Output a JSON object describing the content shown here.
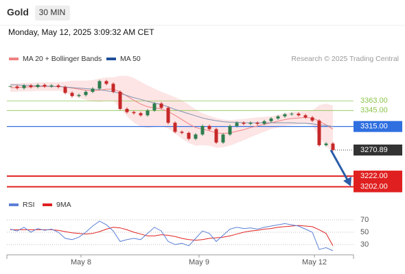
{
  "header": {
    "title": "Gold",
    "interval": "30 MIN",
    "datetime": "Monday, May 12, 2025 3:09:32 AM CET"
  },
  "chart_data": [
    {
      "type": "candlestick",
      "credit": "Research © 2025 Trading Central",
      "xlim": [
        -0.5,
        50
      ],
      "ylim": [
        3190,
        3425
      ],
      "up_color": "#2e7d4f",
      "down_color": "#c62828",
      "closes": [
        3390,
        3387,
        3392,
        3389,
        3393,
        3390,
        3392,
        3389,
        3378,
        3372,
        3374,
        3380,
        3386,
        3400,
        3395,
        3380,
        3348,
        3342,
        3340,
        3336,
        3345,
        3358,
        3350,
        3322,
        3305,
        3303,
        3292,
        3300,
        3316,
        3310,
        3285,
        3300,
        3316,
        3322,
        3320,
        3322,
        3320,
        3325,
        3330,
        3334,
        3338,
        3339,
        3336,
        3332,
        3326,
        3280,
        3283,
        3271
      ],
      "series": [
        {
          "name": "MA 20 + Bollinger Bands",
          "color": "#f08080",
          "band_color": "#fde0e0",
          "values": [
            3388,
            3388,
            3389,
            3389,
            3390,
            3390,
            3390,
            3390,
            3389,
            3387,
            3385,
            3383,
            3382,
            3383,
            3385,
            3385,
            3380,
            3372,
            3364,
            3357,
            3352,
            3350,
            3348,
            3343,
            3336,
            3328,
            3320,
            3313,
            3310,
            3307,
            3303,
            3302,
            3303,
            3306,
            3309,
            3313,
            3316,
            3319,
            3322,
            3325,
            3328,
            3330,
            3331,
            3332,
            3331,
            3325,
            3318,
            3310
          ],
          "upper": [
            3396,
            3396,
            3397,
            3397,
            3398,
            3398,
            3398,
            3398,
            3399,
            3401,
            3401,
            3401,
            3402,
            3405,
            3407,
            3407,
            3410,
            3410,
            3406,
            3399,
            3392,
            3386,
            3380,
            3375,
            3370,
            3364,
            3356,
            3347,
            3340,
            3335,
            3331,
            3328,
            3327,
            3328,
            3329,
            3331,
            3332,
            3333,
            3334,
            3337,
            3340,
            3342,
            3343,
            3344,
            3345,
            3355,
            3358,
            3354
          ],
          "lower": [
            3380,
            3380,
            3381,
            3381,
            3382,
            3382,
            3382,
            3382,
            3379,
            3373,
            3369,
            3365,
            3362,
            3361,
            3363,
            3363,
            3350,
            3334,
            3322,
            3315,
            3312,
            3314,
            3316,
            3311,
            3302,
            3292,
            3284,
            3279,
            3280,
            3279,
            3275,
            3276,
            3279,
            3284,
            3289,
            3295,
            3300,
            3305,
            3310,
            3313,
            3316,
            3318,
            3319,
            3320,
            3317,
            3295,
            3278,
            3266
          ]
        },
        {
          "name": "MA 50",
          "color": "#1f4e99",
          "line_color": "#7f93b0",
          "values": [
            3393,
            3393,
            3392,
            3392,
            3391,
            3391,
            3390,
            3390,
            3389,
            3388,
            3387,
            3386,
            3385,
            3384,
            3382,
            3380,
            3377,
            3373,
            3369,
            3366,
            3362,
            3359,
            3356,
            3352,
            3347,
            3343,
            3339,
            3335,
            3331,
            3328,
            3326,
            3324,
            3323,
            3323,
            3322,
            3322,
            3322,
            3322,
            3322,
            3322,
            3322,
            3322,
            3321,
            3321,
            3320,
            3318,
            3317,
            3315
          ]
        }
      ],
      "levels": [
        {
          "value": 3363,
          "label": "3363.00",
          "color": "#8bc34a",
          "boxed": false
        },
        {
          "value": 3345,
          "label": "3345.00",
          "color": "#8bc34a",
          "boxed": false
        },
        {
          "value": 3315,
          "label": "3315.00",
          "color": "#2f6fe0",
          "boxed": true
        },
        {
          "value": 3222,
          "label": "3222.00",
          "color": "#e02020",
          "boxed": true
        },
        {
          "value": 3202,
          "label": "3202.00",
          "color": "#e02020",
          "boxed": true
        }
      ],
      "last_price": {
        "value": 3270.89,
        "label": "3270.89"
      }
    },
    {
      "type": "line",
      "xlim": [
        -0.5,
        50
      ],
      "ylim": [
        15,
        80
      ],
      "yticks": [
        30,
        50,
        70
      ],
      "xticks": [
        {
          "value": 10.3,
          "label": "May 8"
        },
        {
          "value": 27.5,
          "label": "May 9"
        },
        {
          "value": 44.3,
          "label": "May 12"
        }
      ],
      "series": [
        {
          "name": "RSI",
          "color": "#5b7fd6",
          "values": [
            55,
            52,
            58,
            50,
            56,
            53,
            55,
            50,
            40,
            38,
            42,
            50,
            60,
            68,
            62,
            52,
            35,
            38,
            40,
            38,
            48,
            58,
            52,
            35,
            30,
            32,
            28,
            40,
            52,
            48,
            35,
            45,
            55,
            58,
            56,
            57,
            55,
            58,
            60,
            62,
            64,
            62,
            60,
            55,
            50,
            22,
            25,
            20
          ]
        },
        {
          "name": "9MA",
          "color": "#e02020",
          "values": [
            54,
            54,
            54,
            54,
            54,
            54,
            54,
            53,
            51,
            49,
            48,
            47,
            48,
            51,
            55,
            58,
            57,
            54,
            50,
            47,
            44,
            44,
            46,
            45,
            43,
            40,
            38,
            37,
            38,
            40,
            41,
            42,
            44,
            47,
            50,
            52,
            53,
            55,
            56,
            58,
            59,
            60,
            61,
            60,
            59,
            54,
            48,
            28
          ]
        }
      ]
    }
  ]
}
